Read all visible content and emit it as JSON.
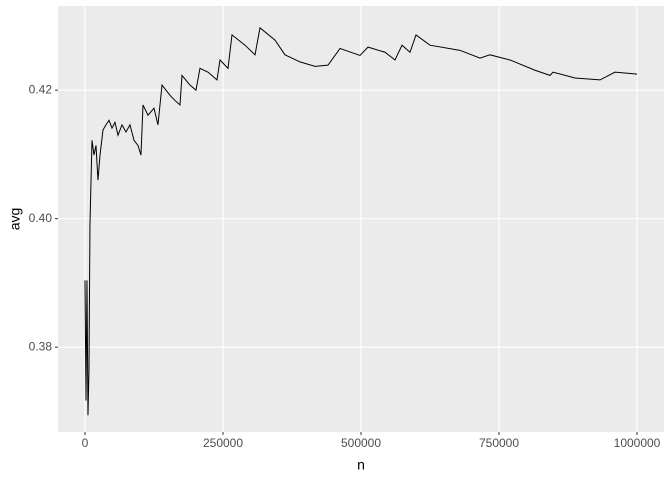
{
  "chart_data": {
    "type": "line",
    "xlabel": "n",
    "ylabel": "avg",
    "x": [
      0,
      1800,
      3600,
      5400,
      7200,
      9000,
      12700,
      16300,
      19900,
      23500,
      27200,
      32600,
      38000,
      43500,
      48900,
      54300,
      59800,
      67000,
      74300,
      81500,
      88800,
      96000,
      101400,
      105100,
      114100,
      125000,
      132200,
      139500,
      154000,
      163000,
      172100,
      175700,
      190200,
      201000,
      208300,
      222800,
      239100,
      244600,
      259100,
      266300,
      289900,
      308000,
      317000,
      344200,
      362300,
      389500,
      416700,
      440200,
      462000,
      498200,
      512700,
      543500,
      561600,
      574300,
      588800,
      599600,
      625000,
      679300,
      715600,
      733700,
      769900,
      815200,
      842400,
      847800,
      887700,
      932970,
      960100,
      1000000
    ],
    "series": [
      {
        "name": "avg",
        "color": "#000000",
        "values": [
          0.3904,
          0.3717,
          0.3904,
          0.3694,
          0.3764,
          0.399,
          0.4122,
          0.4099,
          0.4114,
          0.406,
          0.4099,
          0.4138,
          0.4146,
          0.4153,
          0.4141,
          0.415,
          0.413,
          0.4146,
          0.4135,
          0.4146,
          0.4122,
          0.4114,
          0.4099,
          0.4177,
          0.4161,
          0.4172,
          0.4146,
          0.4208,
          0.4192,
          0.4184,
          0.4177,
          0.4223,
          0.4208,
          0.42,
          0.4234,
          0.4228,
          0.4216,
          0.4247,
          0.4234,
          0.4286,
          0.427,
          0.4255,
          0.4297,
          0.4278,
          0.4255,
          0.4244,
          0.4237,
          0.4239,
          0.4265,
          0.4254,
          0.4267,
          0.4259,
          0.4247,
          0.427,
          0.4259,
          0.4286,
          0.427,
          0.4262,
          0.425,
          0.4255,
          0.4247,
          0.4231,
          0.4223,
          0.4228,
          0.4219,
          0.4216,
          0.4228,
          0.4225
        ]
      }
    ],
    "xlim": [
      -48900,
      1048900
    ],
    "ylim": [
      0.3668,
      0.4331
    ],
    "xticks": [
      0,
      250000,
      500000,
      750000,
      1000000
    ],
    "yticks": [
      0.38,
      {
        "value": 0.4,
        "label": "0.40"
      },
      0.42
    ],
    "grid": true
  }
}
